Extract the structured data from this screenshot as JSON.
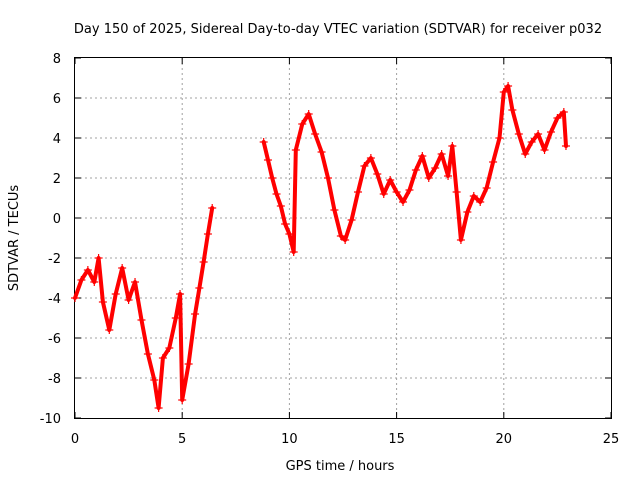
{
  "chart_data": {
    "type": "scatter",
    "title": "Day 150 of 2025, Sidereal Day-to-day VTEC variation (SDTVAR) for receiver p032",
    "xlabel": "GPS time / hours",
    "ylabel": "SDTVAR / TECUs",
    "xlim": [
      0,
      25
    ],
    "ylim": [
      -10,
      8
    ],
    "xticks": [
      "0",
      "5",
      "10",
      "15",
      "20",
      "25"
    ],
    "yticks": [
      "-10",
      "-8",
      "-6",
      "-4",
      "-2",
      "0",
      "2",
      "4",
      "6",
      "8"
    ],
    "grid": true,
    "marker": "+",
    "series": [
      {
        "name": "SDTVAR",
        "color": "#ff0000",
        "points": [
          [
            0.0,
            -4.0
          ],
          [
            0.3,
            -3.1
          ],
          [
            0.6,
            -2.6
          ],
          [
            0.9,
            -3.2
          ],
          [
            1.1,
            -2.0
          ],
          [
            1.3,
            -4.2
          ],
          [
            1.6,
            -5.6
          ],
          [
            1.9,
            -3.8
          ],
          [
            2.2,
            -2.5
          ],
          [
            2.5,
            -4.1
          ],
          [
            2.8,
            -3.2
          ],
          [
            3.1,
            -5.1
          ],
          [
            3.4,
            -6.8
          ],
          [
            3.7,
            -8.1
          ],
          [
            3.9,
            -9.5
          ],
          [
            4.1,
            -7.0
          ],
          [
            4.4,
            -6.5
          ],
          [
            4.7,
            -5.0
          ],
          [
            4.9,
            -3.8
          ],
          [
            5.0,
            -9.1
          ],
          [
            5.3,
            -7.3
          ],
          [
            5.6,
            -4.8
          ],
          [
            5.8,
            -3.5
          ],
          [
            6.0,
            -2.2
          ],
          [
            6.2,
            -0.8
          ],
          [
            6.4,
            0.5
          ],
          [
            8.8,
            3.8
          ],
          [
            9.0,
            2.9
          ],
          [
            9.2,
            2.0
          ],
          [
            9.4,
            1.2
          ],
          [
            9.6,
            0.6
          ],
          [
            9.8,
            -0.3
          ],
          [
            10.0,
            -0.8
          ],
          [
            10.2,
            -1.7
          ],
          [
            10.3,
            3.4
          ],
          [
            10.6,
            4.7
          ],
          [
            10.9,
            5.2
          ],
          [
            11.2,
            4.2
          ],
          [
            11.5,
            3.3
          ],
          [
            11.8,
            2.0
          ],
          [
            12.1,
            0.4
          ],
          [
            12.4,
            -0.9
          ],
          [
            12.6,
            -1.1
          ],
          [
            12.9,
            -0.1
          ],
          [
            13.2,
            1.3
          ],
          [
            13.5,
            2.6
          ],
          [
            13.8,
            3.0
          ],
          [
            14.1,
            2.2
          ],
          [
            14.4,
            1.2
          ],
          [
            14.7,
            1.9
          ],
          [
            15.0,
            1.3
          ],
          [
            15.3,
            0.8
          ],
          [
            15.6,
            1.4
          ],
          [
            15.9,
            2.4
          ],
          [
            16.2,
            3.1
          ],
          [
            16.5,
            2.0
          ],
          [
            16.8,
            2.5
          ],
          [
            17.1,
            3.2
          ],
          [
            17.4,
            2.1
          ],
          [
            17.6,
            3.6
          ],
          [
            17.8,
            1.3
          ],
          [
            18.0,
            -1.1
          ],
          [
            18.3,
            0.3
          ],
          [
            18.6,
            1.1
          ],
          [
            18.9,
            0.8
          ],
          [
            19.2,
            1.5
          ],
          [
            19.5,
            2.8
          ],
          [
            19.8,
            4.0
          ],
          [
            20.0,
            6.3
          ],
          [
            20.2,
            6.6
          ],
          [
            20.4,
            5.4
          ],
          [
            20.7,
            4.2
          ],
          [
            21.0,
            3.2
          ],
          [
            21.3,
            3.8
          ],
          [
            21.6,
            4.2
          ],
          [
            21.9,
            3.4
          ],
          [
            22.2,
            4.3
          ],
          [
            22.5,
            5.0
          ],
          [
            22.8,
            5.3
          ],
          [
            22.9,
            3.6
          ]
        ]
      }
    ]
  }
}
